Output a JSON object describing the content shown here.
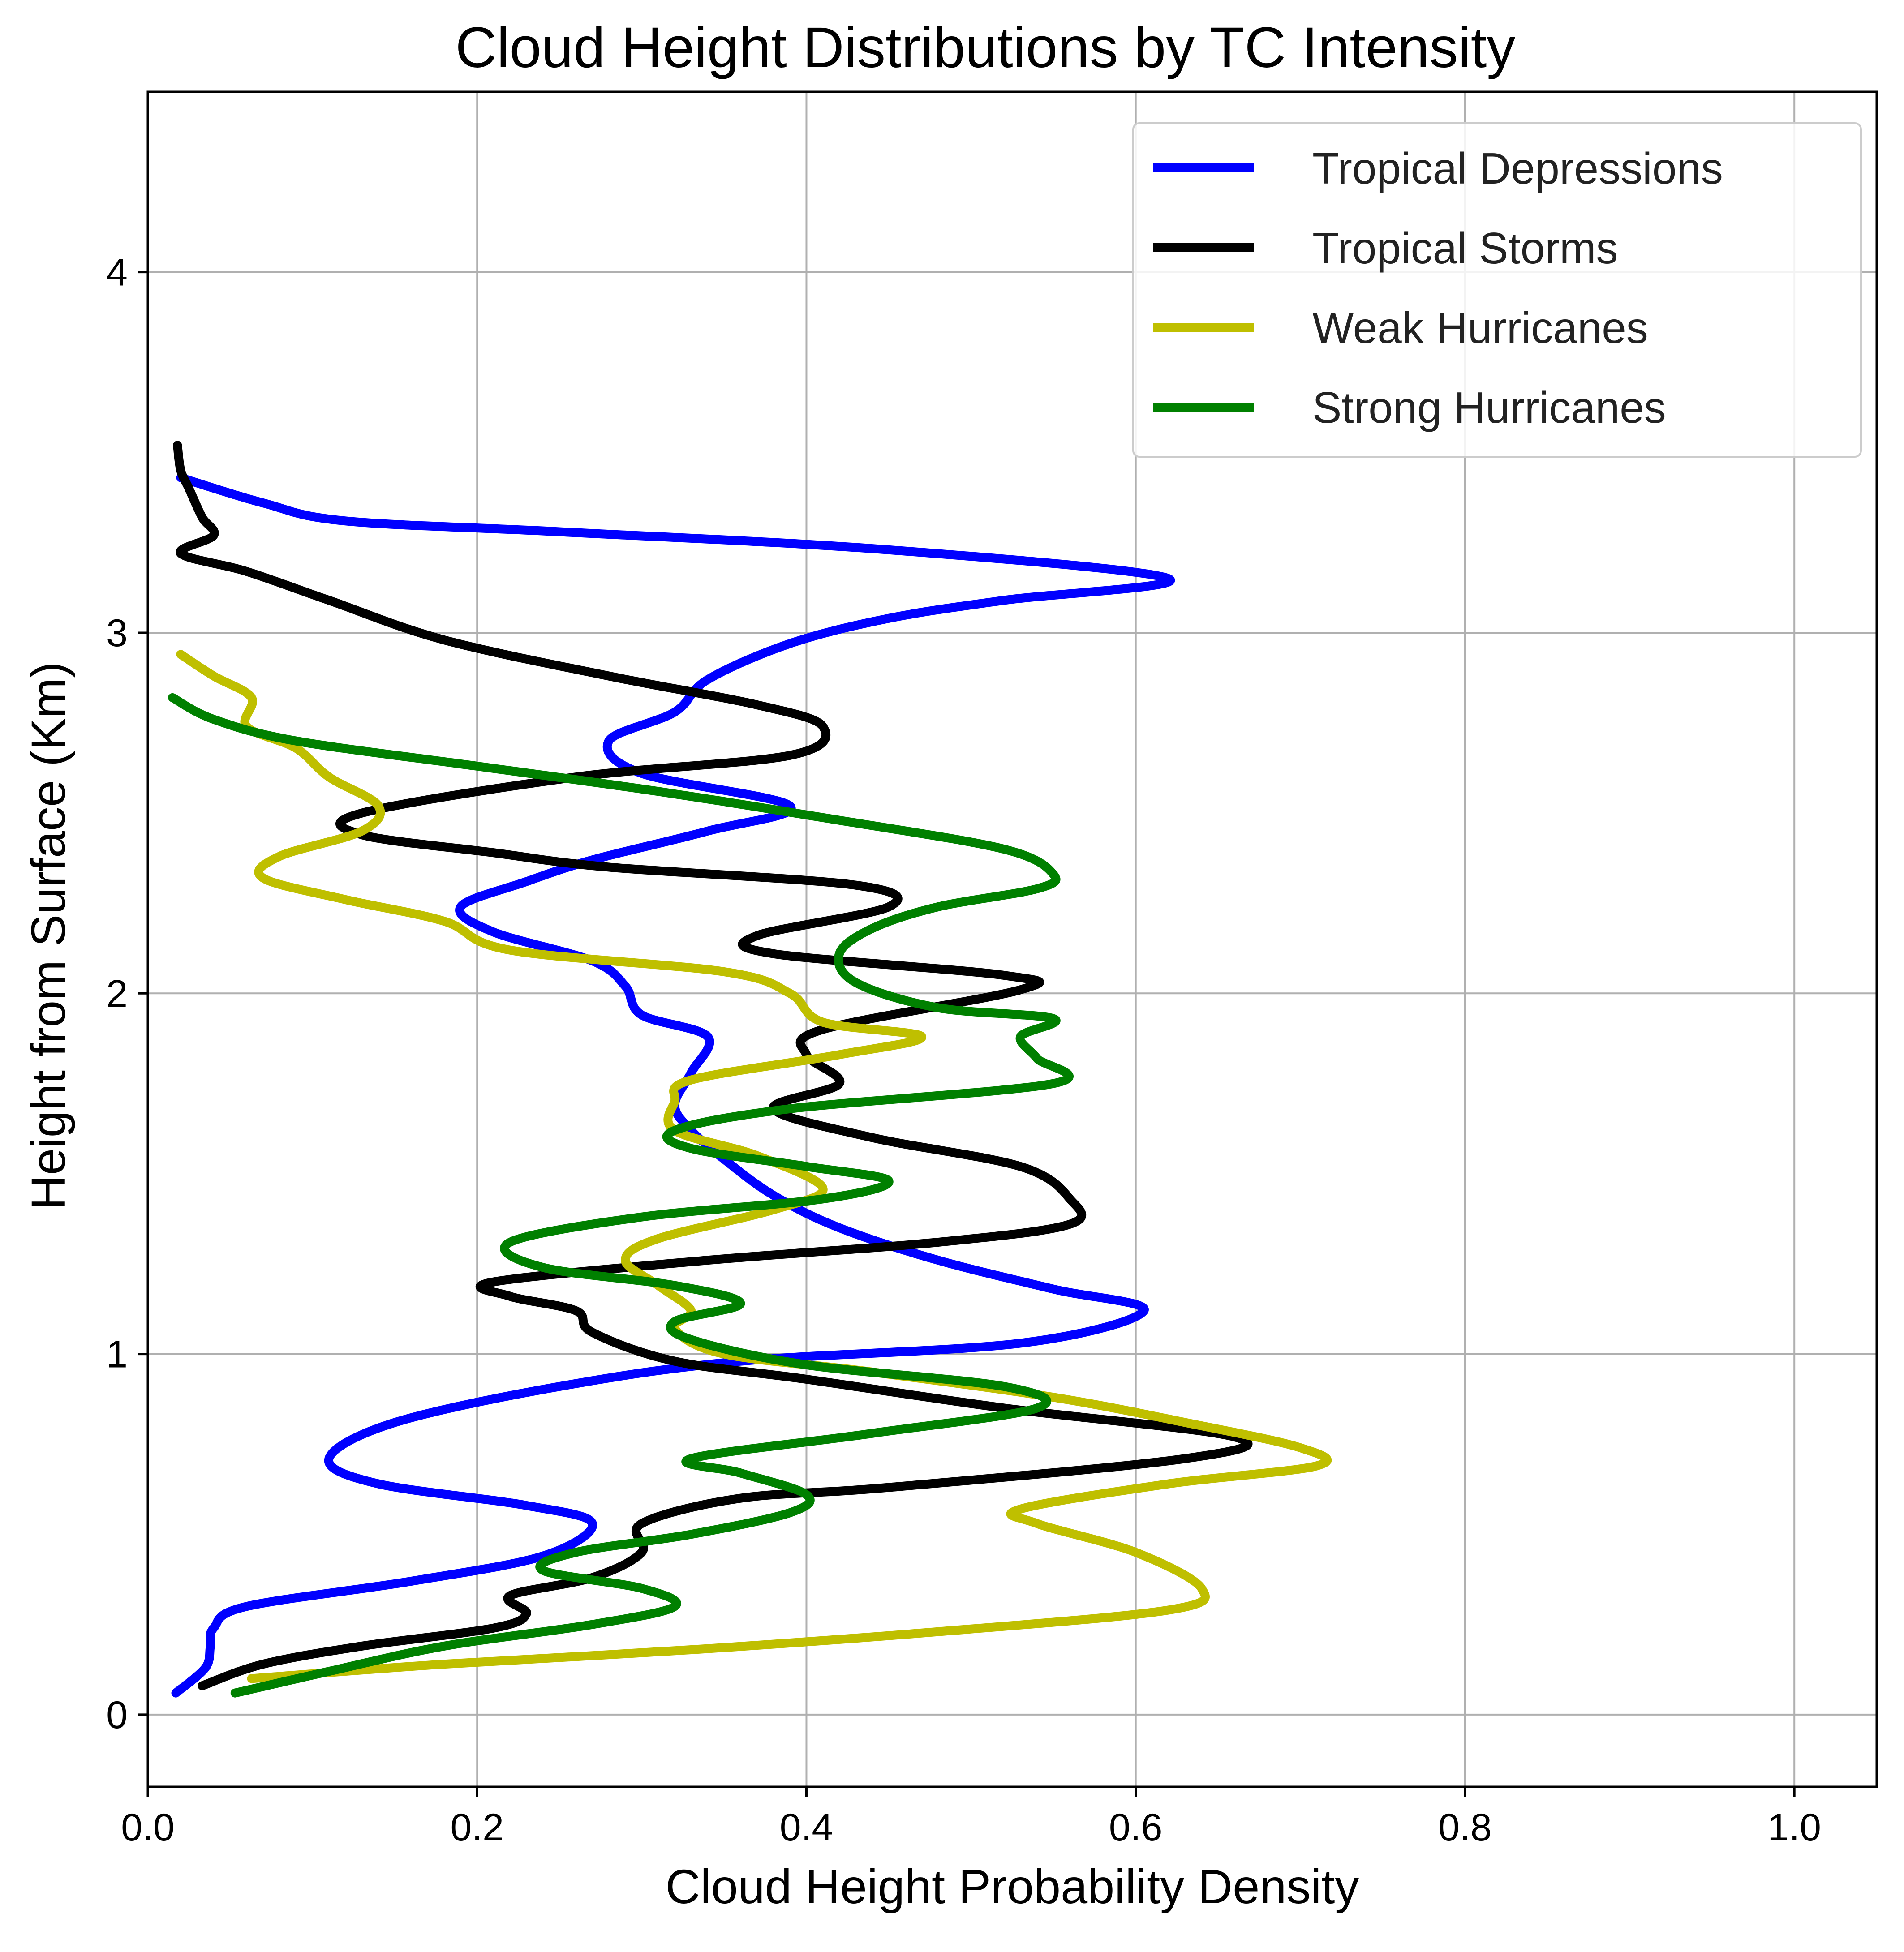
{
  "chart_data": {
    "type": "line",
    "title": "Cloud Height Distributions by TC Intensity",
    "xlabel": "Cloud Height Probability Density",
    "ylabel": "Height from Surface (Km)",
    "xlim": [
      0.0,
      1.05
    ],
    "ylim": [
      -0.2,
      4.5
    ],
    "xticks": [
      0.0,
      0.2,
      0.4,
      0.6,
      0.8,
      1.0
    ],
    "xtick_labels": [
      "0.0",
      "0.2",
      "0.4",
      "0.6",
      "0.8",
      "1.0"
    ],
    "yticks": [
      0,
      1,
      2,
      3,
      4
    ],
    "ytick_labels": [
      "0",
      "1",
      "2",
      "3",
      "4"
    ],
    "grid": true,
    "legend_position": "top-right",
    "series": [
      {
        "name": "Tropical Depressions",
        "color": "#0000ff",
        "points": [
          [
            0.017,
            0.06
          ],
          [
            0.035,
            0.13
          ],
          [
            0.038,
            0.19
          ],
          [
            0.04,
            0.24
          ],
          [
            0.06,
            0.3
          ],
          [
            0.16,
            0.37
          ],
          [
            0.24,
            0.44
          ],
          [
            0.27,
            0.53
          ],
          [
            0.23,
            0.58
          ],
          [
            0.14,
            0.64
          ],
          [
            0.11,
            0.71
          ],
          [
            0.15,
            0.81
          ],
          [
            0.25,
            0.91
          ],
          [
            0.36,
            0.98
          ],
          [
            0.53,
            1.03
          ],
          [
            0.605,
            1.12
          ],
          [
            0.55,
            1.18
          ],
          [
            0.48,
            1.26
          ],
          [
            0.42,
            1.35
          ],
          [
            0.38,
            1.44
          ],
          [
            0.35,
            1.54
          ],
          [
            0.33,
            1.62
          ],
          [
            0.32,
            1.69
          ],
          [
            0.33,
            1.78
          ],
          [
            0.34,
            1.88
          ],
          [
            0.3,
            1.94
          ],
          [
            0.29,
            2.02
          ],
          [
            0.27,
            2.09
          ],
          [
            0.21,
            2.17
          ],
          [
            0.19,
            2.24
          ],
          [
            0.23,
            2.31
          ],
          [
            0.27,
            2.37
          ],
          [
            0.34,
            2.45
          ],
          [
            0.39,
            2.52
          ],
          [
            0.3,
            2.61
          ],
          [
            0.28,
            2.7
          ],
          [
            0.32,
            2.78
          ],
          [
            0.34,
            2.87
          ],
          [
            0.39,
            2.97
          ],
          [
            0.45,
            3.04
          ],
          [
            0.52,
            3.09
          ],
          [
            0.62,
            3.15
          ],
          [
            0.45,
            3.23
          ],
          [
            0.25,
            3.28
          ],
          [
            0.12,
            3.31
          ],
          [
            0.07,
            3.36
          ],
          [
            0.02,
            3.43
          ]
        ]
      },
      {
        "name": "Tropical Storms",
        "color": "#000000",
        "points": [
          [
            0.033,
            0.08
          ],
          [
            0.07,
            0.14
          ],
          [
            0.13,
            0.19
          ],
          [
            0.21,
            0.24
          ],
          [
            0.23,
            0.28
          ],
          [
            0.22,
            0.33
          ],
          [
            0.27,
            0.38
          ],
          [
            0.3,
            0.45
          ],
          [
            0.3,
            0.53
          ],
          [
            0.36,
            0.6
          ],
          [
            0.45,
            0.63
          ],
          [
            0.63,
            0.71
          ],
          [
            0.66,
            0.77
          ],
          [
            0.52,
            0.85
          ],
          [
            0.4,
            0.93
          ],
          [
            0.32,
            0.98
          ],
          [
            0.27,
            1.06
          ],
          [
            0.26,
            1.12
          ],
          [
            0.22,
            1.16
          ],
          [
            0.21,
            1.2
          ],
          [
            0.34,
            1.26
          ],
          [
            0.48,
            1.31
          ],
          [
            0.56,
            1.36
          ],
          [
            0.56,
            1.43
          ],
          [
            0.53,
            1.52
          ],
          [
            0.44,
            1.6
          ],
          [
            0.38,
            1.68
          ],
          [
            0.42,
            1.75
          ],
          [
            0.4,
            1.83
          ],
          [
            0.41,
            1.9
          ],
          [
            0.53,
            2.01
          ],
          [
            0.52,
            2.05
          ],
          [
            0.38,
            2.11
          ],
          [
            0.37,
            2.16
          ],
          [
            0.45,
            2.24
          ],
          [
            0.43,
            2.3
          ],
          [
            0.28,
            2.35
          ],
          [
            0.21,
            2.39
          ],
          [
            0.13,
            2.44
          ],
          [
            0.13,
            2.5
          ],
          [
            0.26,
            2.6
          ],
          [
            0.39,
            2.66
          ],
          [
            0.41,
            2.74
          ],
          [
            0.37,
            2.8
          ],
          [
            0.28,
            2.88
          ],
          [
            0.18,
            2.98
          ],
          [
            0.11,
            3.09
          ],
          [
            0.06,
            3.17
          ],
          [
            0.02,
            3.22
          ],
          [
            0.04,
            3.27
          ],
          [
            0.033,
            3.32
          ],
          [
            0.025,
            3.4
          ],
          [
            0.02,
            3.45
          ],
          [
            0.018,
            3.52
          ]
        ]
      },
      {
        "name": "Weak Hurricanes",
        "color": "#bfbf00",
        "points": [
          [
            0.063,
            0.1
          ],
          [
            0.18,
            0.14
          ],
          [
            0.33,
            0.18
          ],
          [
            0.48,
            0.23
          ],
          [
            0.62,
            0.29
          ],
          [
            0.64,
            0.35
          ],
          [
            0.6,
            0.45
          ],
          [
            0.54,
            0.53
          ],
          [
            0.53,
            0.57
          ],
          [
            0.62,
            0.64
          ],
          [
            0.71,
            0.69
          ],
          [
            0.7,
            0.74
          ],
          [
            0.63,
            0.81
          ],
          [
            0.55,
            0.88
          ],
          [
            0.44,
            0.95
          ],
          [
            0.35,
            1.0
          ],
          [
            0.32,
            1.07
          ],
          [
            0.33,
            1.12
          ],
          [
            0.31,
            1.19
          ],
          [
            0.29,
            1.26
          ],
          [
            0.31,
            1.32
          ],
          [
            0.38,
            1.4
          ],
          [
            0.41,
            1.46
          ],
          [
            0.37,
            1.55
          ],
          [
            0.32,
            1.62
          ],
          [
            0.32,
            1.7
          ],
          [
            0.33,
            1.76
          ],
          [
            0.42,
            1.83
          ],
          [
            0.47,
            1.88
          ],
          [
            0.41,
            1.92
          ],
          [
            0.39,
            2.0
          ],
          [
            0.35,
            2.06
          ],
          [
            0.22,
            2.12
          ],
          [
            0.18,
            2.2
          ],
          [
            0.12,
            2.26
          ],
          [
            0.07,
            2.32
          ],
          [
            0.08,
            2.38
          ],
          [
            0.13,
            2.45
          ],
          [
            0.14,
            2.52
          ],
          [
            0.11,
            2.6
          ],
          [
            0.09,
            2.68
          ],
          [
            0.06,
            2.74
          ],
          [
            0.063,
            2.82
          ],
          [
            0.04,
            2.88
          ],
          [
            0.02,
            2.94
          ]
        ]
      },
      {
        "name": "Strong Hurricanes",
        "color": "#008000",
        "points": [
          [
            0.053,
            0.06
          ],
          [
            0.11,
            0.12
          ],
          [
            0.18,
            0.19
          ],
          [
            0.27,
            0.25
          ],
          [
            0.32,
            0.3
          ],
          [
            0.3,
            0.35
          ],
          [
            0.24,
            0.4
          ],
          [
            0.26,
            0.45
          ],
          [
            0.33,
            0.5
          ],
          [
            0.39,
            0.56
          ],
          [
            0.4,
            0.61
          ],
          [
            0.36,
            0.67
          ],
          [
            0.33,
            0.71
          ],
          [
            0.44,
            0.78
          ],
          [
            0.54,
            0.85
          ],
          [
            0.52,
            0.91
          ],
          [
            0.4,
            0.97
          ],
          [
            0.33,
            1.04
          ],
          [
            0.32,
            1.09
          ],
          [
            0.36,
            1.14
          ],
          [
            0.32,
            1.19
          ],
          [
            0.24,
            1.24
          ],
          [
            0.22,
            1.31
          ],
          [
            0.3,
            1.38
          ],
          [
            0.41,
            1.43
          ],
          [
            0.45,
            1.48
          ],
          [
            0.4,
            1.52
          ],
          [
            0.33,
            1.57
          ],
          [
            0.32,
            1.62
          ],
          [
            0.39,
            1.68
          ],
          [
            0.55,
            1.75
          ],
          [
            0.54,
            1.82
          ],
          [
            0.53,
            1.88
          ],
          [
            0.55,
            1.93
          ],
          [
            0.48,
            1.96
          ],
          [
            0.43,
            2.03
          ],
          [
            0.42,
            2.11
          ],
          [
            0.44,
            2.18
          ],
          [
            0.48,
            2.24
          ],
          [
            0.54,
            2.29
          ],
          [
            0.55,
            2.33
          ],
          [
            0.52,
            2.4
          ],
          [
            0.42,
            2.48
          ],
          [
            0.31,
            2.56
          ],
          [
            0.2,
            2.63
          ],
          [
            0.09,
            2.7
          ],
          [
            0.04,
            2.76
          ],
          [
            0.015,
            2.82
          ]
        ]
      }
    ]
  }
}
